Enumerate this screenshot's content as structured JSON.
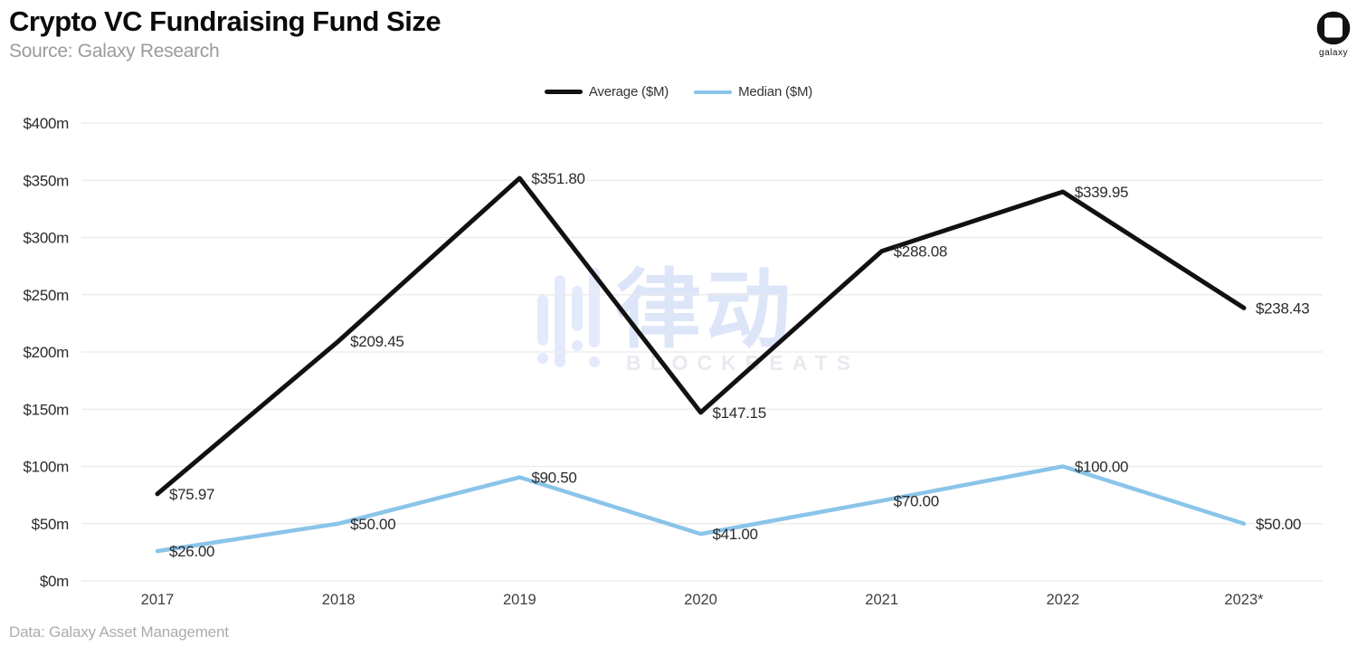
{
  "header": {
    "title": "Crypto VC Fundraising Fund Size",
    "subtitle": "Source: Galaxy Research",
    "logo_label": "galaxy"
  },
  "legend": [
    {
      "label": "Average ($M)",
      "color": "#111111"
    },
    {
      "label": "Median ($M)",
      "color": "#8AC4E9"
    }
  ],
  "watermark": {
    "text": "律动",
    "subtext": "BLOCKBEATS"
  },
  "footer": {
    "note": "Data: Galaxy Asset Management"
  },
  "chart_data": {
    "type": "line",
    "title": "Crypto VC Fundraising Fund Size",
    "categories": [
      "2017",
      "2018",
      "2019",
      "2020",
      "2021",
      "2022",
      "2023*"
    ],
    "series": [
      {
        "name": "Average ($M)",
        "color": "#111111",
        "values": [
          75.97,
          209.45,
          351.8,
          147.15,
          288.08,
          339.95,
          238.43
        ],
        "labels": [
          "$75.97",
          "$209.45",
          "$351.80",
          "$147.15",
          "$288.08",
          "$339.95",
          "$238.43"
        ]
      },
      {
        "name": "Median ($M)",
        "color": "#8AC4E9",
        "values": [
          26.0,
          50.0,
          90.5,
          41.0,
          70.0,
          100.0,
          50.0
        ],
        "labels": [
          "$26.00",
          "$50.00",
          "$90.50",
          "$41.00",
          "$70.00",
          "$100.00",
          "$50.00"
        ]
      }
    ],
    "xlabel": "",
    "ylabel": "",
    "ylim": [
      0,
      400
    ],
    "ytick_step": 50,
    "ytick_labels": [
      "$0m",
      "$50m",
      "$100m",
      "$150m",
      "$200m",
      "$250m",
      "$300m",
      "$350m",
      "$400m"
    ],
    "grid": true,
    "legend_position": "top-center"
  }
}
